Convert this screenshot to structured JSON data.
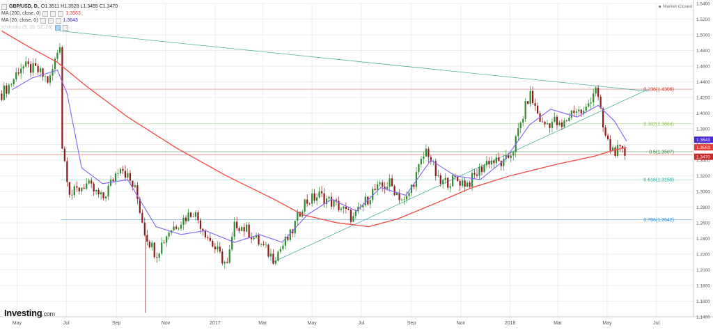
{
  "legend": {
    "symbol": "GBP/USD, D,",
    "ohlc": "O1.3511  H1.3528  L1.3455  C1.3470",
    "ma200_label": "MA (200, close, 0)",
    "ma200_value": "1.3563",
    "ma20_label": "MA (20, close, 0)",
    "ma20_value": "1.3643",
    "ichimoku_label": "Ichimoku (9, 26, 52, 26)"
  },
  "status": {
    "market": "Market Closed"
  },
  "brand": {
    "name": "Investing",
    "suffix": ".com"
  },
  "colors": {
    "up": "#2d8a2d",
    "down": "#8b1a1a",
    "ma200": "#ef5350",
    "ma20": "#8a6df0",
    "trend": "#4fb0a0",
    "grid": "#eeeeee"
  },
  "chart_data": {
    "type": "candlestick",
    "ylim": [
      1.14,
      1.54
    ],
    "y_ticks": [
      "1.1400",
      "1.1600",
      "1.1800",
      "1.2000",
      "1.2200",
      "1.2400",
      "1.2600",
      "1.2800",
      "1.3000",
      "1.3200",
      "1.3400",
      "1.3600",
      "1.3800",
      "1.4000",
      "1.4200",
      "1.4400",
      "1.4600",
      "1.4800",
      "1.5000",
      "1.5200",
      "1.5400"
    ],
    "x_ticks": [
      {
        "label": "May",
        "date": "2016-05-01"
      },
      {
        "label": "Jul",
        "date": "2016-07-01"
      },
      {
        "label": "Sep",
        "date": "2016-09-01"
      },
      {
        "label": "Nov",
        "date": "2016-11-01"
      },
      {
        "label": "2017",
        "date": "2017-01-01"
      },
      {
        "label": "Mar",
        "date": "2017-03-01"
      },
      {
        "label": "May",
        "date": "2017-05-01"
      },
      {
        "label": "Jul",
        "date": "2017-07-01"
      },
      {
        "label": "Sep",
        "date": "2017-09-01"
      },
      {
        "label": "Nov",
        "date": "2017-11-01"
      },
      {
        "label": "2018",
        "date": "2018-01-01"
      },
      {
        "label": "Mar",
        "date": "2018-03-01"
      },
      {
        "label": "May",
        "date": "2018-05-01"
      },
      {
        "label": "Jul",
        "date": "2018-07-01"
      }
    ],
    "x_range": [
      "2016-04-10",
      "2018-08-15"
    ],
    "price_path": [
      {
        "date": "2016-04-12",
        "price": 1.425
      },
      {
        "date": "2016-04-25",
        "price": 1.44
      },
      {
        "date": "2016-05-05",
        "price": 1.46
      },
      {
        "date": "2016-05-25",
        "price": 1.455
      },
      {
        "date": "2016-06-10",
        "price": 1.44
      },
      {
        "date": "2016-06-23",
        "price": 1.49
      },
      {
        "date": "2016-06-24",
        "price": 1.37
      },
      {
        "date": "2016-07-06",
        "price": 1.295
      },
      {
        "date": "2016-07-25",
        "price": 1.31
      },
      {
        "date": "2016-08-15",
        "price": 1.29
      },
      {
        "date": "2016-09-06",
        "price": 1.335
      },
      {
        "date": "2016-09-25",
        "price": 1.3
      },
      {
        "date": "2016-10-07",
        "price": 1.245
      },
      {
        "date": "2016-10-20",
        "price": 1.22
      },
      {
        "date": "2016-11-05",
        "price": 1.25
      },
      {
        "date": "2016-12-05",
        "price": 1.275
      },
      {
        "date": "2016-12-30",
        "price": 1.23
      },
      {
        "date": "2017-01-16",
        "price": 1.205
      },
      {
        "date": "2017-01-26",
        "price": 1.26
      },
      {
        "date": "2017-02-10",
        "price": 1.25
      },
      {
        "date": "2017-03-14",
        "price": 1.215
      },
      {
        "date": "2017-04-05",
        "price": 1.245
      },
      {
        "date": "2017-04-20",
        "price": 1.285
      },
      {
        "date": "2017-05-10",
        "price": 1.295
      },
      {
        "date": "2017-06-05",
        "price": 1.28
      },
      {
        "date": "2017-06-21",
        "price": 1.265
      },
      {
        "date": "2017-07-15",
        "price": 1.3
      },
      {
        "date": "2017-08-05",
        "price": 1.31
      },
      {
        "date": "2017-08-24",
        "price": 1.285
      },
      {
        "date": "2017-09-20",
        "price": 1.355
      },
      {
        "date": "2017-10-05",
        "price": 1.31
      },
      {
        "date": "2017-10-25",
        "price": 1.315
      },
      {
        "date": "2017-11-10",
        "price": 1.31
      },
      {
        "date": "2017-12-05",
        "price": 1.34
      },
      {
        "date": "2017-12-25",
        "price": 1.335
      },
      {
        "date": "2018-01-05",
        "price": 1.355
      },
      {
        "date": "2018-01-25",
        "price": 1.425
      },
      {
        "date": "2018-02-10",
        "price": 1.385
      },
      {
        "date": "2018-02-25",
        "price": 1.39
      },
      {
        "date": "2018-03-05",
        "price": 1.38
      },
      {
        "date": "2018-03-20",
        "price": 1.405
      },
      {
        "date": "2018-04-03",
        "price": 1.4
      },
      {
        "date": "2018-04-17",
        "price": 1.435
      },
      {
        "date": "2018-04-27",
        "price": 1.375
      },
      {
        "date": "2018-05-05",
        "price": 1.355
      },
      {
        "date": "2018-05-18",
        "price": 1.35
      },
      {
        "date": "2018-05-25",
        "price": 1.347
      }
    ],
    "series": [
      {
        "name": "MA (200, close, 0)",
        "last": 1.3563,
        "points": [
          {
            "date": "2016-04-12",
            "price": 1.505
          },
          {
            "date": "2016-05-15",
            "price": 1.485
          },
          {
            "date": "2016-06-20",
            "price": 1.465
          },
          {
            "date": "2016-07-25",
            "price": 1.435
          },
          {
            "date": "2016-09-15",
            "price": 1.395
          },
          {
            "date": "2016-11-15",
            "price": 1.355
          },
          {
            "date": "2017-01-15",
            "price": 1.32
          },
          {
            "date": "2017-03-15",
            "price": 1.29
          },
          {
            "date": "2017-04-20",
            "price": 1.27
          },
          {
            "date": "2017-06-01",
            "price": 1.26
          },
          {
            "date": "2017-07-10",
            "price": 1.255
          },
          {
            "date": "2017-08-15",
            "price": 1.265
          },
          {
            "date": "2017-10-01",
            "price": 1.285
          },
          {
            "date": "2017-11-15",
            "price": 1.305
          },
          {
            "date": "2018-01-01",
            "price": 1.32
          },
          {
            "date": "2018-03-01",
            "price": 1.335
          },
          {
            "date": "2018-04-15",
            "price": 1.345
          },
          {
            "date": "2018-05-10",
            "price": 1.353
          },
          {
            "date": "2018-05-25",
            "price": 1.3563
          }
        ]
      },
      {
        "name": "MA (20, close, 0)",
        "last": 1.3643,
        "points": [
          {
            "date": "2016-04-25",
            "price": 1.43
          },
          {
            "date": "2016-05-20",
            "price": 1.445
          },
          {
            "date": "2016-06-20",
            "price": 1.455
          },
          {
            "date": "2016-07-02",
            "price": 1.425
          },
          {
            "date": "2016-07-20",
            "price": 1.33
          },
          {
            "date": "2016-08-15",
            "price": 1.31
          },
          {
            "date": "2016-09-15",
            "price": 1.315
          },
          {
            "date": "2016-10-20",
            "price": 1.255
          },
          {
            "date": "2016-11-20",
            "price": 1.245
          },
          {
            "date": "2016-12-20",
            "price": 1.25
          },
          {
            "date": "2017-01-25",
            "price": 1.235
          },
          {
            "date": "2017-02-25",
            "price": 1.245
          },
          {
            "date": "2017-03-25",
            "price": 1.235
          },
          {
            "date": "2017-04-25",
            "price": 1.27
          },
          {
            "date": "2017-05-25",
            "price": 1.29
          },
          {
            "date": "2017-06-25",
            "price": 1.275
          },
          {
            "date": "2017-07-25",
            "price": 1.305
          },
          {
            "date": "2017-08-25",
            "price": 1.295
          },
          {
            "date": "2017-09-25",
            "price": 1.34
          },
          {
            "date": "2017-10-25",
            "price": 1.32
          },
          {
            "date": "2017-11-25",
            "price": 1.315
          },
          {
            "date": "2017-12-25",
            "price": 1.34
          },
          {
            "date": "2018-01-25",
            "price": 1.385
          },
          {
            "date": "2018-02-20",
            "price": 1.405
          },
          {
            "date": "2018-03-25",
            "price": 1.395
          },
          {
            "date": "2018-04-20",
            "price": 1.41
          },
          {
            "date": "2018-05-10",
            "price": 1.39
          },
          {
            "date": "2018-05-25",
            "price": 1.3643
          }
        ]
      }
    ],
    "trendlines": [
      {
        "name": "down",
        "from": {
          "date": "2016-06-23",
          "price": 1.505
        },
        "to": {
          "date": "2018-06-20",
          "price": 1.428
        }
      },
      {
        "name": "up",
        "from": {
          "date": "2017-03-14",
          "price": 1.21
        },
        "to": {
          "date": "2018-06-20",
          "price": 1.43
        }
      }
    ],
    "fib_levels": [
      {
        "label": "0.236(1.4306)",
        "price": 1.4306,
        "color": "#c0392b"
      },
      {
        "label": "0.382(1.3864)",
        "price": 1.3864,
        "color": "#8bc34a"
      },
      {
        "label": "0.5(1.3507)",
        "price": 1.3507,
        "color": "#2e7d32"
      },
      {
        "label": "0.618(1.3150)",
        "price": 1.315,
        "color": "#26a69a"
      },
      {
        "label": "0.786(1.2642)",
        "price": 1.2642,
        "color": "#1e88e5"
      }
    ],
    "fib_start": "2016-06-24",
    "markers": [
      {
        "label": "1.3643",
        "price": 1.3643,
        "color": "#4b27d6"
      },
      {
        "label": "1.3563",
        "price": 1.3563,
        "color": "#e53935"
      },
      {
        "label": "1.3470",
        "price": 1.347,
        "color": "#c62828"
      }
    ],
    "flash_crash": {
      "date": "2016-10-07",
      "low": 1.145
    }
  }
}
